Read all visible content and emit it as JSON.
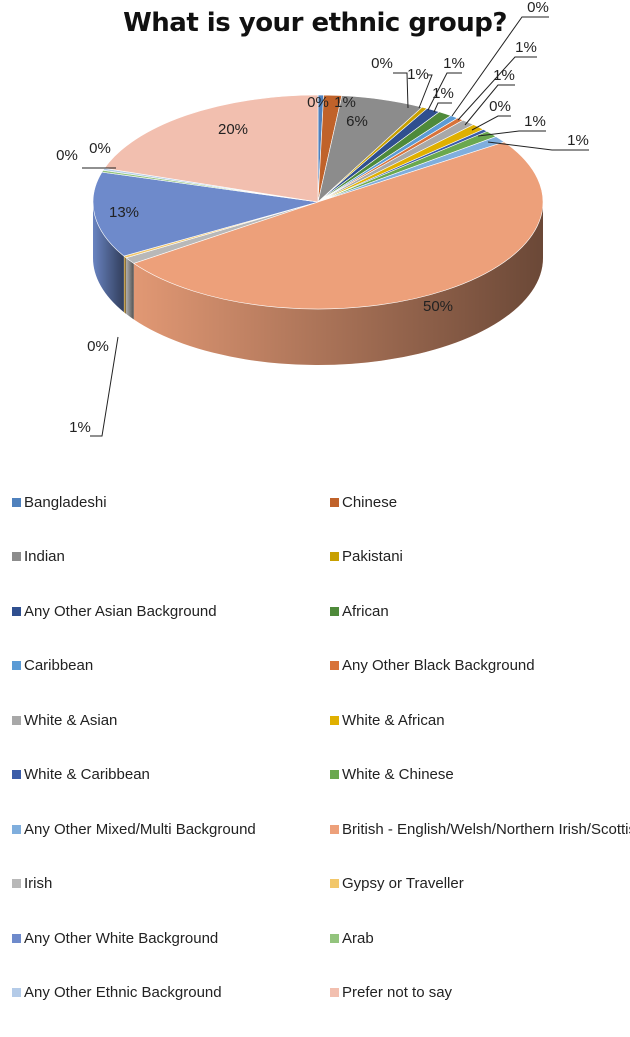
{
  "chart_data": {
    "type": "pie",
    "title": "What is your ethnic group?",
    "categories": [
      "Bangladeshi",
      "Chinese",
      "Indian",
      "Pakistani",
      "Any Other Asian Background",
      "African",
      "Caribbean",
      "Any Other Black Background",
      "White & Asian",
      "White & African",
      "White & Caribbean",
      "White & Chinese",
      "Any Other Mixed/Multi Background",
      "British - English/Welsh/Northern Irish/Scottish",
      "Irish",
      "Gypsy or Traveller",
      "Any Other White Background",
      "Arab",
      "Any Other Ethnic Background",
      "Prefer not to say"
    ],
    "values": [
      0.4,
      1.3,
      6,
      0.4,
      1,
      1,
      0.6,
      0.5,
      1,
      1,
      0.4,
      1,
      1,
      50,
      1,
      0.3,
      13,
      0.3,
      0.3,
      20
    ],
    "data_labels": [
      "0%",
      "1%",
      "6%",
      "0%",
      "1%",
      "1%",
      "1%",
      "0%",
      "1%",
      "1%",
      "0%",
      "1%",
      "1%",
      "50%",
      "1%",
      "0%",
      "13%",
      "0%",
      "0%",
      "20%"
    ],
    "colors": [
      "#4F81BD",
      "#C0622A",
      "#8C8C8C",
      "#C8A000",
      "#2F4F8F",
      "#4E8A3A",
      "#5B9BD5",
      "#D8733A",
      "#A8A8A8",
      "#E0B000",
      "#3B5CA8",
      "#6AA84F",
      "#7FAEDD",
      "#EDA07A",
      "#B8B8B8",
      "#F2C76A",
      "#6E8ACB",
      "#93C47D",
      "#B4CBE8",
      "#F2BFAF"
    ],
    "legend_position": "bottom"
  }
}
